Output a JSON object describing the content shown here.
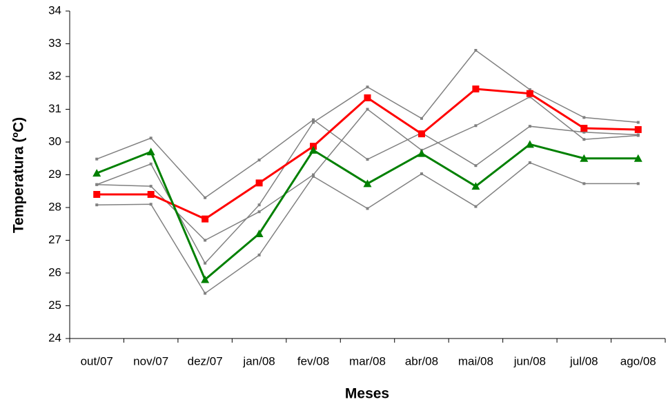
{
  "chart_data": {
    "type": "line",
    "xlabel": "Meses",
    "ylabel": "Temperatura (ºC)",
    "categories": [
      "out/07",
      "nov/07",
      "dez/07",
      "jan/08",
      "fev/08",
      "mar/08",
      "abr/08",
      "mai/08",
      "jun/08",
      "jul/08",
      "ago/08"
    ],
    "ylim": [
      24,
      34
    ],
    "yticks": [
      24,
      25,
      26,
      27,
      28,
      29,
      30,
      31,
      32,
      33,
      34
    ],
    "grid": false,
    "series": [
      {
        "color": "#808080",
        "marker": "small-square",
        "values": [
          29.48,
          30.12,
          28.3,
          29.45,
          30.68,
          29.47,
          30.28,
          29.28,
          30.48,
          30.3,
          30.22
        ]
      },
      {
        "color": "#808080",
        "marker": "small-square",
        "values": [
          28.7,
          29.33,
          26.3,
          28.08,
          30.6,
          31.68,
          30.72,
          32.8,
          31.6,
          30.75,
          30.6
        ]
      },
      {
        "color": "#808080",
        "marker": "small-square",
        "values": [
          28.7,
          28.65,
          27.0,
          27.87,
          29.0,
          31.0,
          29.75,
          30.5,
          31.38,
          30.08,
          30.2
        ]
      },
      {
        "color": "#808080",
        "marker": "small-square",
        "values": [
          28.08,
          28.1,
          25.38,
          26.55,
          28.95,
          27.97,
          29.03,
          28.03,
          29.37,
          28.73,
          28.73
        ]
      },
      {
        "color": "#ff0000",
        "marker": "square",
        "values": [
          28.4,
          28.4,
          27.65,
          28.75,
          29.87,
          31.35,
          30.25,
          31.62,
          31.48,
          30.42,
          30.38
        ]
      },
      {
        "color": "#008000",
        "marker": "triangle",
        "values": [
          29.05,
          29.7,
          25.8,
          27.2,
          29.75,
          28.73,
          29.65,
          28.65,
          29.93,
          29.5,
          29.5
        ]
      }
    ]
  }
}
